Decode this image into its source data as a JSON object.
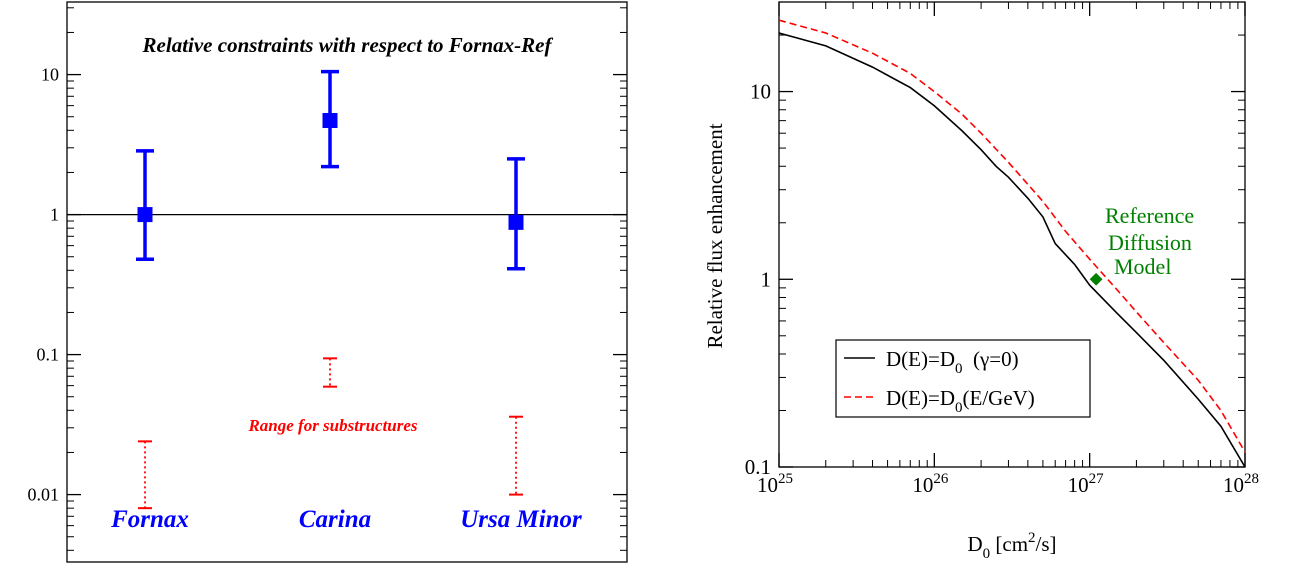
{
  "chart_data": [
    {
      "type": "scatter",
      "title": "Relative constraints with respect to Fornax-Ref",
      "yscale": "log",
      "ylim": [
        0.0033,
        33
      ],
      "yticks": [
        {
          "v": 0.01,
          "label": "0.01"
        },
        {
          "v": 0.1,
          "label": "0.1"
        },
        {
          "v": 1,
          "label": "1"
        },
        {
          "v": 10,
          "label": "10"
        }
      ],
      "reference_line": 1,
      "categories": [
        "Fornax",
        "Carina",
        "Ursa Minor"
      ],
      "constraints": [
        {
          "name": "Fornax",
          "center": 1.0,
          "low": 0.48,
          "high": 2.85
        },
        {
          "name": "Carina",
          "center": 4.7,
          "low": 2.2,
          "high": 10.5
        },
        {
          "name": "Ursa Minor",
          "center": 0.88,
          "low": 0.41,
          "high": 2.5
        }
      ],
      "substructure_label": "Range for substructures",
      "substructure_ranges": [
        {
          "name": "Fornax",
          "low": 0.008,
          "high": 0.024
        },
        {
          "name": "Carina",
          "low": 0.059,
          "high": 0.094
        },
        {
          "name": "Ursa Minor",
          "low": 0.01,
          "high": 0.036
        }
      ],
      "colors": {
        "constraints": "#0000ff",
        "substructures": "#ff0000",
        "line": "#000000"
      }
    },
    {
      "type": "line",
      "xscale": "log",
      "yscale": "log",
      "xlim": [
        1e+25,
        1e+28
      ],
      "ylim": [
        0.1,
        30
      ],
      "xlabel": {
        "main": "D",
        "sub": "0",
        "unit_pre": " [cm",
        "sup": "2",
        "unit_post": "/s]"
      },
      "ylabel": "Relative flux enhancement",
      "xticks": [
        {
          "v": 1e+25,
          "base": "10",
          "exp": "25"
        },
        {
          "v": 1e+26,
          "base": "10",
          "exp": "26"
        },
        {
          "v": 1e+27,
          "base": "10",
          "exp": "27"
        },
        {
          "v": 1e+28,
          "base": "10",
          "exp": "28"
        }
      ],
      "yticks": [
        {
          "v": 0.1,
          "label": "0.1"
        },
        {
          "v": 1,
          "label": "1"
        },
        {
          "v": 10,
          "label": "10"
        }
      ],
      "series": [
        {
          "name": "D(E)=D0 (γ=0)",
          "color": "#000000",
          "dash": "solid",
          "x": [
            1e+25,
            2e+25,
            4e+25,
            7e+25,
            1e+26,
            1.5e+26,
            2e+26,
            2.5e+26,
            3e+26,
            4e+26,
            5e+26,
            6e+26,
            8e+26,
            1e+27,
            1.5e+27,
            2e+27,
            3e+27,
            5e+27,
            7e+27,
            1e+28
          ],
          "y": [
            20.5,
            17.5,
            13.5,
            10.5,
            8.4,
            6.2,
            4.9,
            4.0,
            3.5,
            2.7,
            2.15,
            1.55,
            1.2,
            0.93,
            0.66,
            0.52,
            0.37,
            0.23,
            0.165,
            0.1
          ]
        },
        {
          "name": "D(E)=D0(E/GeV)",
          "color": "#ff0000",
          "dash": "dashed",
          "x": [
            1e+25,
            2e+25,
            4e+25,
            7e+25,
            1e+26,
            1.5e+26,
            2e+26,
            3e+26,
            5e+26,
            7e+26,
            1e+27,
            1.5e+27,
            2e+27,
            3e+27,
            5e+27,
            7e+27,
            1e+28
          ],
          "y": [
            24,
            20.5,
            16,
            12.5,
            10,
            7.6,
            6.0,
            4.2,
            2.6,
            1.8,
            1.28,
            0.88,
            0.67,
            0.46,
            0.29,
            0.2,
            0.12
          ]
        }
      ],
      "legend_entries": [
        {
          "pre": "D(E)=D",
          "sub": "0",
          "post": "  (γ=0)"
        },
        {
          "pre": "D(E)=D",
          "sub": "0",
          "post": "(E/GeV)"
        }
      ],
      "legend_position": "bottom-left",
      "reference_point": {
        "x": 1.1e+27,
        "y": 1.0,
        "color": "#008000"
      },
      "annotation": [
        "Reference",
        "Diffusion",
        "Model"
      ]
    }
  ]
}
